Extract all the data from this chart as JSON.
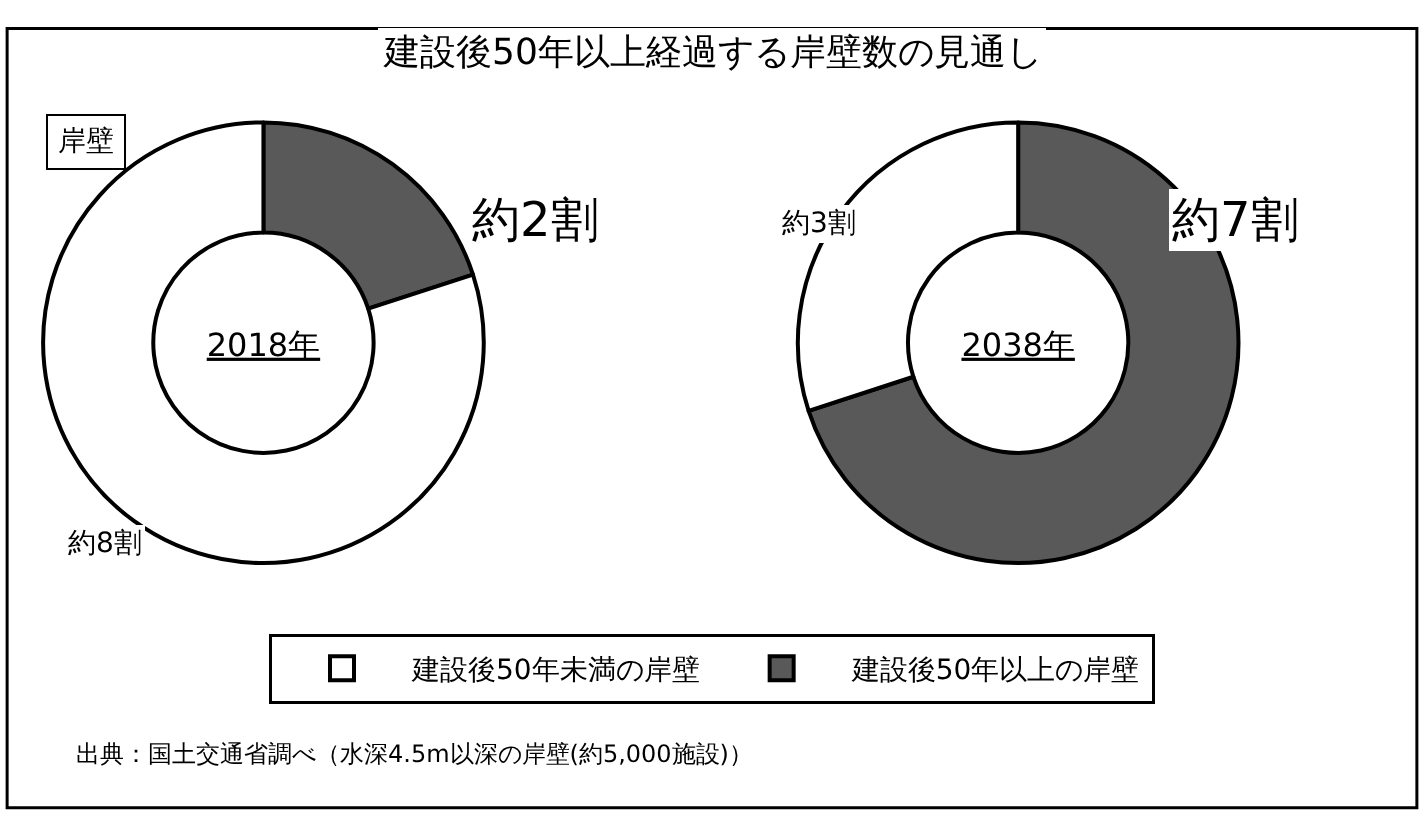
{
  "chart_data": [
    {
      "type": "donut",
      "title": "2018年",
      "categories": [
        "建設後50年未満の岸壁",
        "建設後50年以上の岸壁"
      ],
      "values": [
        80,
        20
      ],
      "colors": [
        "#ffffff",
        "#595959"
      ],
      "value_labels": [
        "約8割",
        "約2割"
      ],
      "legend": "bottom",
      "annotations": [
        "建設後50年以上経過する岸壁数の見通し",
        "岸壁",
        "出典：国土交通省調べ（水深4.5m以深の岸壁(約5,000施設)）"
      ]
    },
    {
      "type": "donut",
      "title": "2038年",
      "categories": [
        null,
        null
      ],
      "values": [
        30,
        70
      ],
      "colors": [
        "#ffffff",
        "#595959"
      ],
      "value_labels": [
        "約3割",
        "約7割"
      ]
    }
  ]
}
